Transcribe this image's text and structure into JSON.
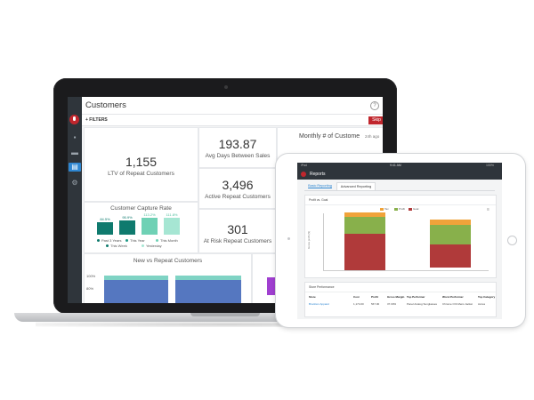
{
  "laptop": {
    "app_title": "Customers",
    "filters_label": "+ FILTERS",
    "action_button": "Skip",
    "help_glyph": "?",
    "sidebar_icons": [
      "logo-icon",
      "cart-icon",
      "truck-icon",
      "document-icon",
      "gear-icon"
    ],
    "ltv": {
      "value": "1,155",
      "label": "LTV of Repeat Customers"
    },
    "avg_days": {
      "value": "193.87",
      "label": "Avg Days Between Sales"
    },
    "active_repeat": {
      "value": "3,496",
      "label": "Active Repeat Customers"
    },
    "at_risk": {
      "value": "301",
      "label": "At Risk Repeat Customers"
    },
    "monthly_title": "Monthly # of Custome",
    "monthly_period": "24h ago",
    "capture": {
      "title": "Customer Capture Rate",
      "bars": [
        {
          "label": "84.5%",
          "value": 84.5,
          "color": "#0f7a6e"
        },
        {
          "label": "95.9%",
          "value": 95.9,
          "color": "#0f7a6e"
        },
        {
          "label": "113.2%",
          "value": 113.2,
          "color": "#6fd1b5"
        },
        {
          "label": "111.8%",
          "value": 111.8,
          "color": "#a6e6d3"
        }
      ],
      "legend": [
        {
          "label": "Past 3 Years",
          "color": "#0f7a6e"
        },
        {
          "label": "This Year",
          "color": "#1f9a86"
        },
        {
          "label": "This Month",
          "color": "#6fd1b5"
        },
        {
          "label": "This Week",
          "color": "#0f7a6e"
        },
        {
          "label": "Yesterday",
          "color": "#a6e6d3"
        }
      ]
    },
    "new_vs_repeat": {
      "title": "New vs Repeat Customers",
      "ticks": [
        "100%",
        "80%"
      ]
    }
  },
  "ipad": {
    "status_left": "iPad",
    "status_time": "9:41 AM",
    "status_right": "100%",
    "app_title": "Reports",
    "tabs": [
      "Basic Reporting",
      "Advanced Reporting"
    ],
    "chart_title": "Profit vs. Goal",
    "legend": [
      {
        "label": "Tax",
        "color": "#f0a33a"
      },
      {
        "label": "Profit",
        "color": "#88b04b"
      },
      {
        "label": "Goal",
        "color": "#b03a3a"
      }
    ],
    "y_axis_label": "Gross profit ($)",
    "table": {
      "title": "Store Performance",
      "headers": [
        "Store",
        "Cost",
        "Profit",
        "Gross Margin",
        "Top Performer",
        "Worst Performer",
        "Top Category"
      ],
      "row": [
        "Brockton Apparel",
        "1,174.00",
        "567.00",
        "37.00%",
        "Panel Analog Sunglasses",
        "Chrome Orb Mens Jacket",
        "Acces"
      ]
    }
  }
}
